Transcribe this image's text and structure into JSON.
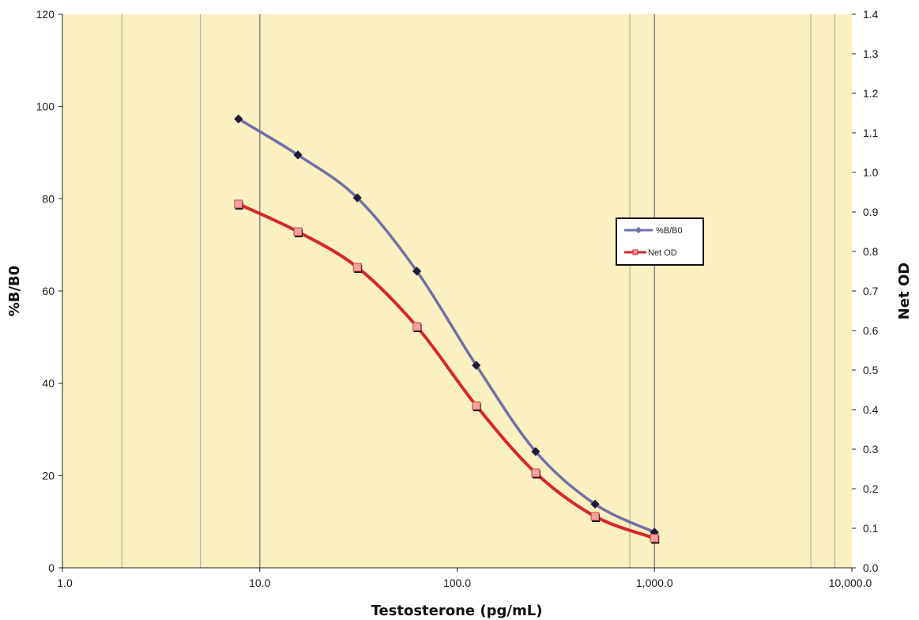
{
  "chart_data": {
    "type": "line",
    "xlabel": "Testosterone (pg/mL)",
    "ylabel": "%B/B0",
    "y2label": "Net OD",
    "x_scale": "log",
    "xlim": [
      1,
      10000
    ],
    "ylim": [
      0,
      120
    ],
    "y2lim": [
      0,
      1.4
    ],
    "x_ticks": [
      "1.0",
      "10.0",
      "100.0",
      "1,000.0",
      "10,000.0"
    ],
    "x_tick_values": [
      1,
      10,
      100,
      1000,
      10000
    ],
    "y_ticks": [
      "0",
      "20",
      "40",
      "60",
      "80",
      "100",
      "120"
    ],
    "y_tick_values": [
      0,
      20,
      40,
      60,
      80,
      100,
      120
    ],
    "y2_ticks": [
      "0.0",
      "0.1",
      "0.2",
      "0.3",
      "0.4",
      "0.5",
      "0.6",
      "0.7",
      "0.8",
      "0.9",
      "1.0",
      "1.1",
      "1.2",
      "1.3",
      "1.4"
    ],
    "y2_tick_values": [
      0,
      0.1,
      0.2,
      0.3,
      0.4,
      0.5,
      0.6,
      0.7,
      0.8,
      0.9,
      1.0,
      1.1,
      1.2,
      1.3,
      1.4
    ],
    "vertical_gridlines_at": [
      2,
      5,
      10,
      750,
      1000,
      6200,
      8200
    ],
    "plot_background": "#faf0c0",
    "legend_position": "right",
    "x": [
      7.8,
      15.6,
      31.2,
      62.5,
      125,
      250,
      500,
      1000
    ],
    "series": [
      {
        "name": "%B/B0",
        "axis": "left",
        "color": "#7070a8",
        "marker": "diamond",
        "values": [
          97.3,
          89.5,
          80.2,
          64.3,
          43.9,
          25.2,
          13.8,
          7.7
        ]
      },
      {
        "name": "Net OD",
        "axis": "right",
        "color": "#d8272b",
        "marker": "square",
        "values": [
          0.92,
          0.85,
          0.76,
          0.61,
          0.41,
          0.24,
          0.13,
          0.075
        ]
      }
    ]
  }
}
